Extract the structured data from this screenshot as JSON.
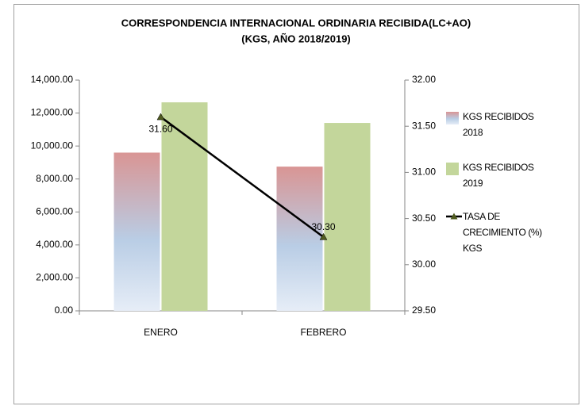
{
  "chart_data": {
    "type": "bar",
    "title": "CORRESPONDENCIA INTERNACIONAL ORDINARIA RECIBIDA(LC+AO)",
    "subtitle": "(KGS, AÑO 2018/2019)",
    "categories": [
      "ENERO",
      "FEBRERO"
    ],
    "series": [
      {
        "name": "KGS RECIBIDOS 2018",
        "color": "#d99594",
        "values": [
          9600,
          8750
        ]
      },
      {
        "name": "KGS RECIBIDOS 2019",
        "color": "#c3d69b",
        "values": [
          12650,
          11400
        ]
      },
      {
        "name": "TASA DE CRECIMIENTO (%) KGS",
        "type": "line",
        "axis": "y2",
        "color": "#000000",
        "marker_color": "#4f5b1f",
        "values": [
          31.6,
          30.3
        ],
        "value_labels": [
          "31.60",
          "30.30"
        ]
      }
    ],
    "ylim": [
      0,
      14000
    ],
    "yticks": [
      {
        "value": 0,
        "label": "0.00"
      },
      {
        "value": 2000,
        "label": "2,000.00"
      },
      {
        "value": 4000,
        "label": "4,000.00"
      },
      {
        "value": 6000,
        "label": "6,000.00"
      },
      {
        "value": 8000,
        "label": "8,000.00"
      },
      {
        "value": 10000,
        "label": "10,000.00"
      },
      {
        "value": 12000,
        "label": "12,000.00"
      },
      {
        "value": 14000,
        "label": "14,000.00"
      }
    ],
    "y2lim": [
      29.5,
      32
    ],
    "y2ticks": [
      {
        "value": 29.5,
        "label": "29.50"
      },
      {
        "value": 30,
        "label": "30.00"
      },
      {
        "value": 30.5,
        "label": "30.50"
      },
      {
        "value": 31,
        "label": "31.00"
      },
      {
        "value": 31.5,
        "label": "31.50"
      },
      {
        "value": 32,
        "label": "32.00"
      }
    ],
    "grid": false,
    "legend": "right"
  }
}
